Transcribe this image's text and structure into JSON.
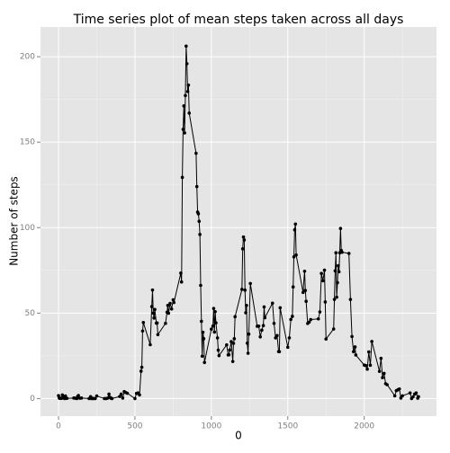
{
  "chart_data": {
    "type": "line",
    "title": "Time series plot of mean steps taken across all days",
    "xlabel": "0",
    "ylabel": "Number of steps",
    "x": [
      0,
      5,
      10,
      15,
      20,
      25,
      30,
      35,
      40,
      45,
      50,
      55,
      100,
      110,
      120,
      125,
      130,
      140,
      150,
      200,
      210,
      215,
      220,
      225,
      230,
      240,
      250,
      300,
      310,
      320,
      330,
      335,
      340,
      345,
      350,
      400,
      410,
      420,
      430,
      440,
      450,
      500,
      510,
      520,
      530,
      540,
      545,
      550,
      555,
      600,
      610,
      615,
      620,
      625,
      630,
      640,
      645,
      650,
      700,
      710,
      715,
      720,
      730,
      740,
      750,
      755,
      800,
      805,
      810,
      815,
      820,
      825,
      830,
      835,
      840,
      845,
      850,
      855,
      900,
      905,
      910,
      915,
      920,
      925,
      930,
      935,
      940,
      945,
      950,
      955,
      1000,
      1010,
      1015,
      1020,
      1025,
      1030,
      1040,
      1045,
      1050,
      1100,
      1110,
      1115,
      1120,
      1130,
      1140,
      1145,
      1150,
      1155,
      1200,
      1205,
      1210,
      1215,
      1220,
      1225,
      1230,
      1235,
      1240,
      1245,
      1255,
      1300,
      1310,
      1320,
      1330,
      1340,
      1345,
      1350,
      1400,
      1410,
      1420,
      1430,
      1440,
      1445,
      1450,
      1500,
      1510,
      1520,
      1530,
      1535,
      1540,
      1545,
      1550,
      1555,
      1600,
      1610,
      1615,
      1620,
      1630,
      1640,
      1650,
      1700,
      1710,
      1720,
      1730,
      1740,
      1745,
      1750,
      1800,
      1805,
      1810,
      1815,
      1820,
      1825,
      1830,
      1835,
      1840,
      1845,
      1850,
      1855,
      1900,
      1910,
      1920,
      1930,
      1940,
      1945,
      2000,
      2010,
      2020,
      2030,
      2040,
      2050,
      2100,
      2110,
      2120,
      2130,
      2140,
      2150,
      2200,
      2210,
      2220,
      2230,
      2240,
      2250,
      2300,
      2310,
      2320,
      2330,
      2340,
      2350,
      2355
    ],
    "series": [
      {
        "name": "mean steps",
        "color": "#000000",
        "values": [
          1.7,
          0.3,
          0.1,
          0.2,
          0.1,
          2.1,
          0.5,
          0.9,
          0,
          1.5,
          0.3,
          0.1,
          0.3,
          0.2,
          0,
          1.1,
          1.8,
          0.2,
          0.3,
          0,
          1.1,
          0,
          0,
          0.1,
          0,
          0,
          1.5,
          0,
          0,
          0.2,
          2.6,
          0.7,
          0.5,
          0.1,
          0,
          1.2,
          2.6,
          0.3,
          4.1,
          3.5,
          3.1,
          0,
          3,
          3.3,
          2.1,
          16,
          18.3,
          39.5,
          44.5,
          31.5,
          53.8,
          63.5,
          50,
          47.1,
          52.1,
          44.1,
          44.2,
          37.4,
          44,
          50.5,
          54.5,
          49.9,
          55.7,
          52.4,
          57.8,
          56.2,
          73.4,
          68.2,
          129.4,
          157.5,
          171.2,
          155.4,
          177.3,
          206.2,
          195.9,
          179.6,
          183.4,
          167,
          143.5,
          124,
          109.1,
          108.1,
          103.7,
          96,
          66.2,
          45.2,
          24.8,
          38.8,
          35,
          21.1,
          40.6,
          42.4,
          52.7,
          38.9,
          50.8,
          44.3,
          35.5,
          28.3,
          25.1,
          31.4,
          25.5,
          25.6,
          28.4,
          33.3,
          21.7,
          32.3,
          35,
          47.9,
          63.9,
          87.6,
          94.5,
          92.8,
          63.4,
          50.2,
          54.5,
          32.4,
          26.5,
          37.7,
          67.3,
          42.3,
          42.4,
          36.1,
          40,
          42.7,
          53.6,
          47.3,
          55.8,
          44,
          35.5,
          36.9,
          27.5,
          27.4,
          53.1,
          30,
          35.5,
          46.3,
          48.1,
          65.3,
          82.9,
          98.7,
          102.1,
          84,
          62.1,
          74.5,
          63.2,
          56.9,
          43.9,
          44.7,
          46.2,
          46.6,
          50.7,
          73.2,
          68.9,
          75.1,
          56.5,
          34.8,
          40.7,
          58,
          74.7,
          85.3,
          59.3,
          67.8,
          77.7,
          74.2,
          85.3,
          99.5,
          86.6,
          85.6,
          84.9,
          58,
          36.3,
          27.4,
          30.2,
          25.5,
          19.6,
          19.3,
          17.2,
          27.3,
          19.5,
          33.4,
          15.9,
          23.5,
          12.2,
          14.7,
          8.7,
          8.1,
          1.6,
          4.6,
          5.1,
          5.6,
          0.3,
          1.6,
          3.3,
          0,
          1,
          2.6,
          3.3,
          0.2,
          1.1
        ]
      }
    ],
    "xlim": [
      -118,
      2473
    ],
    "xticks": [
      0,
      500,
      1000,
      1500,
      2000
    ],
    "xminor": [
      250,
      750,
      1250,
      1750,
      2250
    ],
    "ylim": [
      -10.3,
      217.4
    ],
    "yticks": [
      0,
      50,
      100,
      150,
      200
    ],
    "yminor": [
      25,
      75,
      125,
      175
    ],
    "grid": true
  }
}
